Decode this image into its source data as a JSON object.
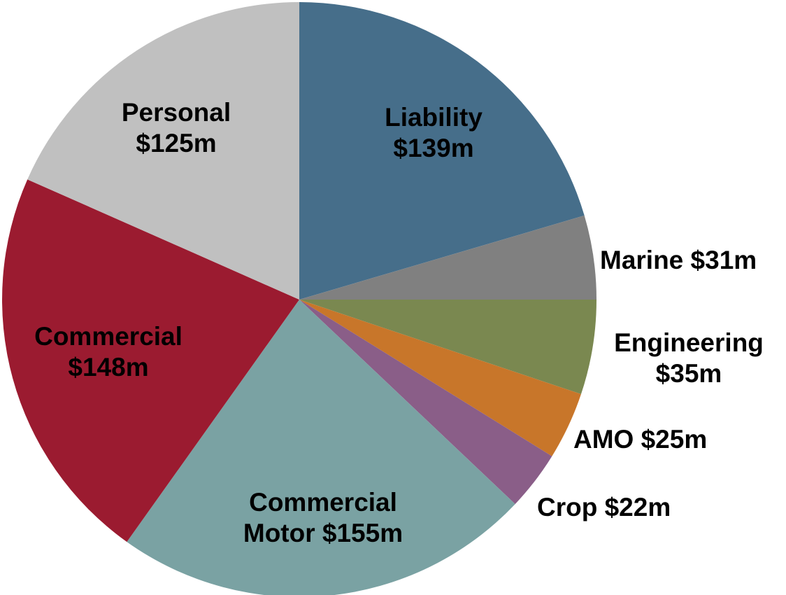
{
  "chart_data": {
    "type": "pie",
    "categories": [
      "Liability",
      "Marine",
      "Engineering",
      "AMO",
      "Crop",
      "Commercial Motor",
      "Commercial",
      "Personal"
    ],
    "values": [
      139,
      31,
      35,
      25,
      22,
      155,
      148,
      125
    ],
    "value_labels": [
      "$139m",
      "$31m",
      "$35m",
      "$25m",
      "$22m",
      "$155m",
      "$148m",
      "$125m"
    ],
    "colors": [
      "#466e8a",
      "#808080",
      "#7a8850",
      "#c8762a",
      "#8a5e88",
      "#7aa2a3",
      "#9b1b30",
      "#c0c0c0"
    ]
  }
}
